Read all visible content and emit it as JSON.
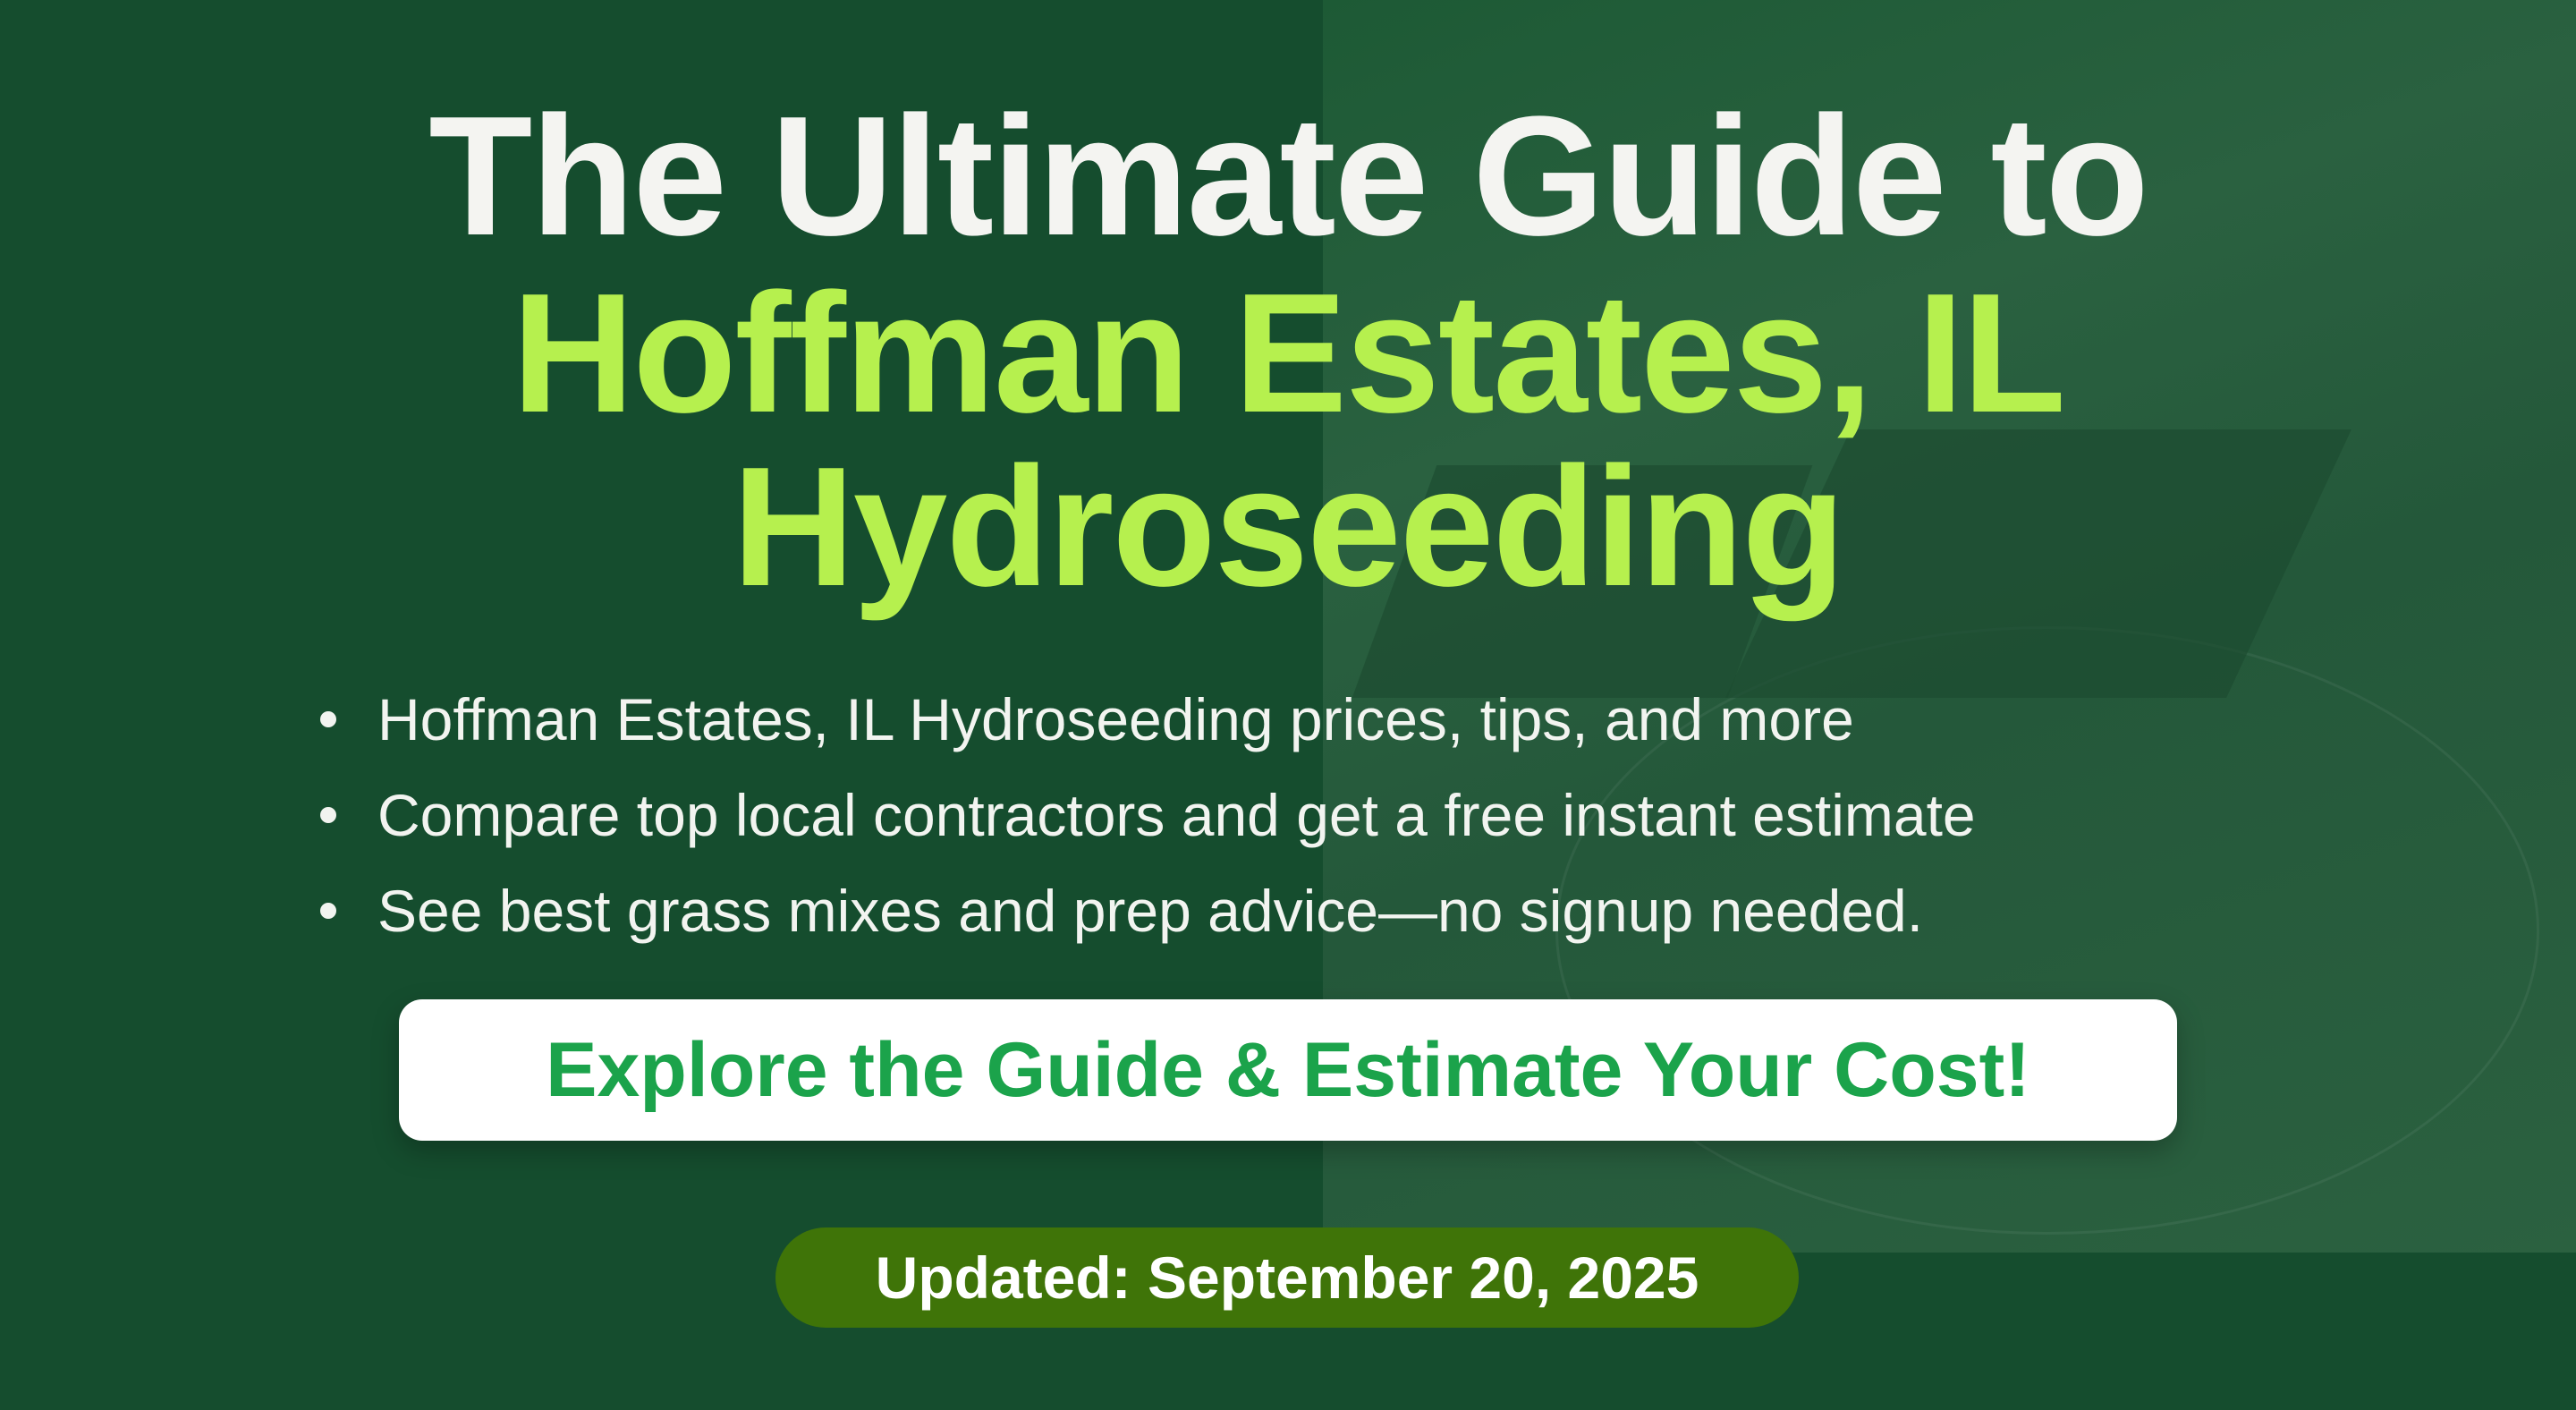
{
  "headline": {
    "line1": "The Ultimate Guide to",
    "line2": "Hoffman Estates, IL",
    "line3": "Hydroseeding"
  },
  "bullets": [
    "Hoffman Estates, IL Hydroseeding prices, tips, and more",
    "Compare top local contractors and get a free instant estimate",
    "See best grass mixes and prep advice—no signup needed."
  ],
  "cta": {
    "label": "Explore the Guide & Estimate Your Cost!"
  },
  "updated_badge": {
    "label": "Updated: September 20, 2025"
  },
  "colors": {
    "background": "#154d2e",
    "headline_white": "#f4f4f1",
    "headline_accent": "#b6f04e",
    "cta_text": "#1ba34b",
    "badge": "#3f7408"
  }
}
